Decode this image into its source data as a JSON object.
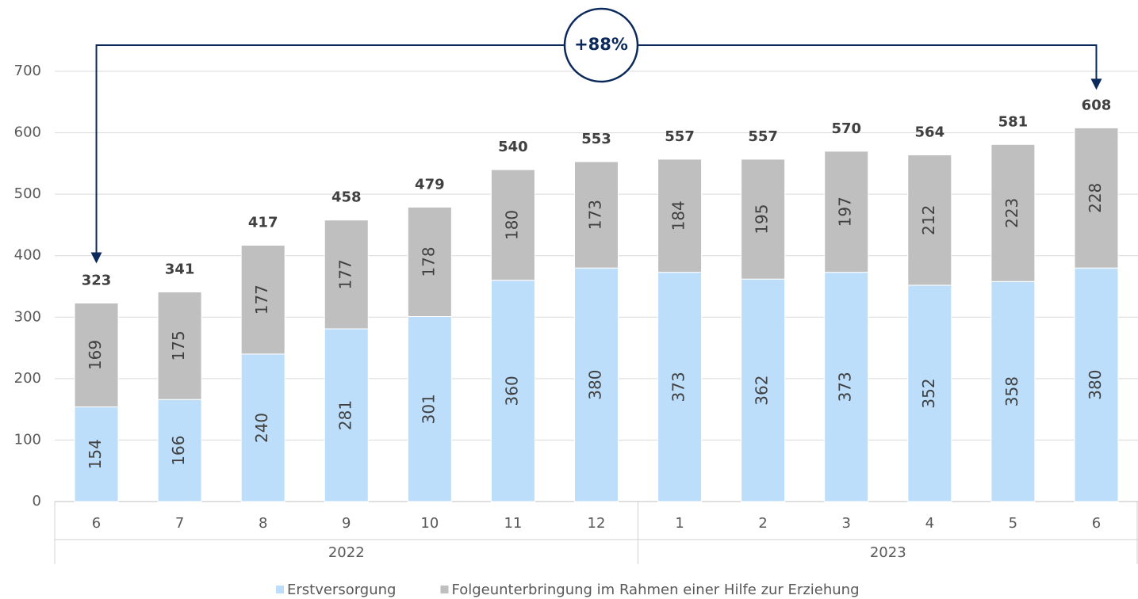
{
  "chart_data": {
    "type": "stacked_bar",
    "groups": [
      {
        "name": "2022",
        "categories": [
          "6",
          "7",
          "8",
          "9",
          "10",
          "11",
          "12"
        ]
      },
      {
        "name": "2023",
        "categories": [
          "1",
          "2",
          "3",
          "4",
          "5",
          "6"
        ]
      }
    ],
    "series": [
      {
        "name": "Erstversorgung",
        "color": "#bddefb",
        "values": [
          154,
          166,
          240,
          281,
          301,
          360,
          380,
          373,
          362,
          373,
          352,
          358,
          380
        ]
      },
      {
        "name": "Folgeunterbringung im Rahmen einer Hilfe zur Erziehung",
        "color": "#bfbfbf",
        "values": [
          169,
          175,
          177,
          177,
          178,
          180,
          173,
          184,
          195,
          197,
          212,
          223,
          228
        ]
      }
    ],
    "totals": [
      323,
      341,
      417,
      458,
      479,
      540,
      553,
      557,
      557,
      570,
      564,
      581,
      608
    ],
    "annotation": "+88%",
    "ylim": [
      0,
      700
    ],
    "yticks": [
      0,
      100,
      200,
      300,
      400,
      500,
      600,
      700
    ],
    "grid": true,
    "legend": "bottom"
  }
}
